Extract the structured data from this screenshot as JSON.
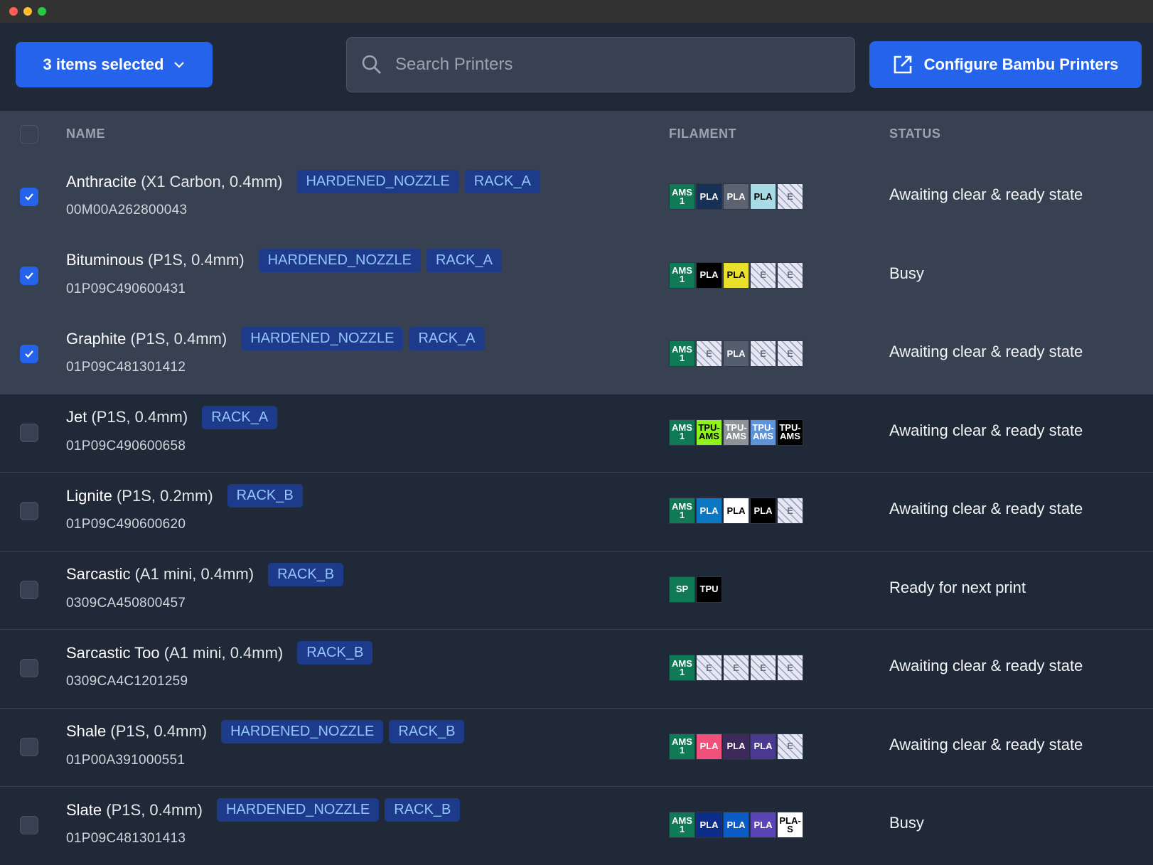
{
  "window": {
    "controls": [
      "#ff5f57",
      "#febc2e",
      "#28c840"
    ]
  },
  "toolbar": {
    "selection_label": "3 items selected",
    "search_placeholder": "Search Printers",
    "search_value": "",
    "configure_label": "Configure Bambu Printers",
    "accent": "#2563eb"
  },
  "table": {
    "columns": [
      "NAME",
      "FILAMENT",
      "STATUS"
    ],
    "rows": [
      {
        "name": "Anthracite",
        "model": "(X1 Carbon, 0.4mm)",
        "serial": "00M00A262800043",
        "tags": [
          "HARDENED_NOZZLE",
          "RACK_A"
        ],
        "selected": true,
        "status": "Awaiting clear & ready state",
        "filament": [
          {
            "label": "AMS 1",
            "color": "#0f7a55",
            "src": true
          },
          {
            "label": "PLA",
            "color": "#163056"
          },
          {
            "label": "PLA",
            "color": "#5b6371"
          },
          {
            "label": "PLA",
            "color": "#a8dbe5",
            "dark": true
          },
          {
            "label": "E",
            "empty": true
          }
        ]
      },
      {
        "name": "Bituminous",
        "model": "(P1S, 0.4mm)",
        "serial": "01P09C490600431",
        "tags": [
          "HARDENED_NOZZLE",
          "RACK_A"
        ],
        "selected": true,
        "status": "Busy",
        "filament": [
          {
            "label": "AMS 1",
            "color": "#0f7a55",
            "src": true
          },
          {
            "label": "PLA",
            "color": "#000000"
          },
          {
            "label": "PLA",
            "color": "#e8e02a",
            "dark": true
          },
          {
            "label": "E",
            "empty": true
          },
          {
            "label": "E",
            "empty": true
          }
        ]
      },
      {
        "name": "Graphite",
        "model": "(P1S, 0.4mm)",
        "serial": "01P09C481301412",
        "tags": [
          "HARDENED_NOZZLE",
          "RACK_A"
        ],
        "selected": true,
        "status": "Awaiting clear & ready state",
        "filament": [
          {
            "label": "AMS 1",
            "color": "#0f7a55",
            "src": true
          },
          {
            "label": "E",
            "empty": true
          },
          {
            "label": "PLA",
            "color": "#555e6e"
          },
          {
            "label": "E",
            "empty": true
          },
          {
            "label": "E",
            "empty": true
          }
        ]
      },
      {
        "name": "Jet",
        "model": "(P1S, 0.4mm)",
        "serial": "01P09C490600658",
        "tags": [
          "RACK_A"
        ],
        "selected": false,
        "status": "Awaiting clear & ready state",
        "filament": [
          {
            "label": "AMS 1",
            "color": "#0f7a55",
            "src": true
          },
          {
            "label": "TPU-AMS",
            "color": "#8ff21e",
            "dark": true
          },
          {
            "label": "TPU-AMS",
            "color": "#8e9297"
          },
          {
            "label": "TPU-AMS",
            "color": "#5e93da"
          },
          {
            "label": "TPU-AMS",
            "color": "#000000"
          }
        ]
      },
      {
        "name": "Lignite",
        "model": "(P1S, 0.2mm)",
        "serial": "01P09C490600620",
        "tags": [
          "RACK_B"
        ],
        "selected": false,
        "status": "Awaiting clear & ready state",
        "filament": [
          {
            "label": "AMS 1",
            "color": "#0f7a55",
            "src": true
          },
          {
            "label": "PLA",
            "color": "#0a76c4"
          },
          {
            "label": "PLA",
            "color": "#ffffff",
            "dark": true
          },
          {
            "label": "PLA",
            "color": "#000000"
          },
          {
            "label": "E",
            "empty": true
          }
        ]
      },
      {
        "name": "Sarcastic",
        "model": "(A1 mini, 0.4mm)",
        "serial": "0309CA450800457",
        "tags": [
          "RACK_B"
        ],
        "selected": false,
        "status": "Ready for next print",
        "filament": [
          {
            "label": "SP",
            "color": "#0f7a55",
            "src": true
          },
          {
            "label": "TPU",
            "color": "#000000"
          }
        ]
      },
      {
        "name": "Sarcastic Too",
        "model": "(A1 mini, 0.4mm)",
        "serial": "0309CA4C1201259",
        "tags": [
          "RACK_B"
        ],
        "selected": false,
        "status": "Awaiting clear & ready state",
        "filament": [
          {
            "label": "AMS 1",
            "color": "#0f7a55",
            "src": true
          },
          {
            "label": "E",
            "empty": true
          },
          {
            "label": "E",
            "empty": true
          },
          {
            "label": "E",
            "empty": true
          },
          {
            "label": "E",
            "empty": true
          }
        ]
      },
      {
        "name": "Shale",
        "model": "(P1S, 0.4mm)",
        "serial": "01P00A391000551",
        "tags": [
          "HARDENED_NOZZLE",
          "RACK_B"
        ],
        "selected": false,
        "status": "Awaiting clear & ready state",
        "filament": [
          {
            "label": "AMS 1",
            "color": "#0f7a55",
            "src": true
          },
          {
            "label": "PLA",
            "color": "#f0507a"
          },
          {
            "label": "PLA",
            "color": "#3e2a5a"
          },
          {
            "label": "PLA",
            "color": "#4a3a8f"
          },
          {
            "label": "E",
            "empty": true
          }
        ]
      },
      {
        "name": "Slate",
        "model": "(P1S, 0.4mm)",
        "serial": "01P09C481301413",
        "tags": [
          "HARDENED_NOZZLE",
          "RACK_B"
        ],
        "selected": false,
        "status": "Busy",
        "filament": [
          {
            "label": "AMS 1",
            "color": "#0f7a55",
            "src": true
          },
          {
            "label": "PLA",
            "color": "#0c2c8a"
          },
          {
            "label": "PLA",
            "color": "#0b5cc4"
          },
          {
            "label": "PLA",
            "color": "#5b45b5"
          },
          {
            "label": "PLA-S",
            "color": "#ffffff",
            "dark": true
          }
        ]
      }
    ]
  }
}
